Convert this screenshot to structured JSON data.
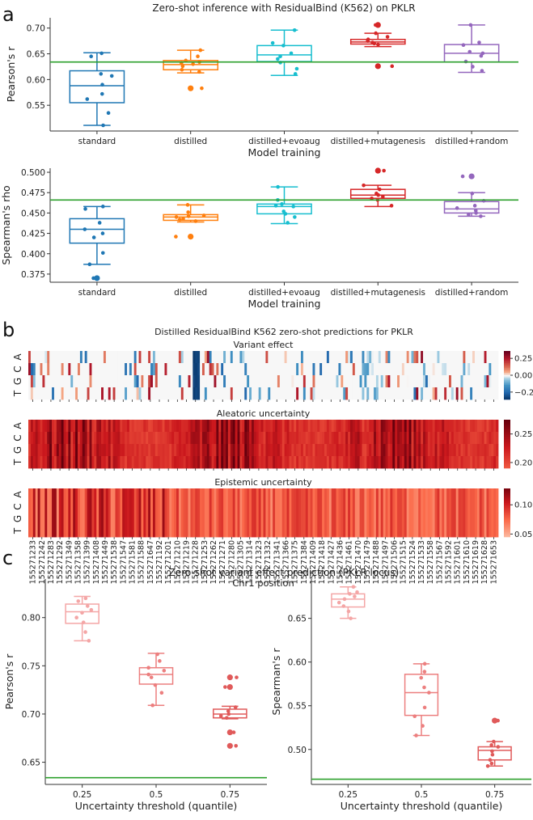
{
  "panels": {
    "a": {
      "letter": "a",
      "title": "Zero-shot inference with ResidualBind (K562) on PKLR",
      "reference_color": "#2ca02c",
      "colors": [
        "#1f77b4",
        "#ff7f0e",
        "#17becf",
        "#d62728",
        "#9467bd"
      ]
    },
    "b": {
      "letter": "b",
      "title": "Distilled ResidualBind K562 zero-shot predictions for PKLR",
      "xlabel": "Chr1 position",
      "row_labels": [
        "A",
        "C",
        "G",
        "T"
      ]
    },
    "c": {
      "letter": "c",
      "title": "Zero-shot variant effect prediction (PKLR locus)",
      "reference_color": "#2ca02c"
    }
  },
  "chart_data": [
    {
      "id": "a_pearson",
      "type": "box",
      "title": "Zero-shot inference with ResidualBind (K562) on PKLR",
      "xlabel": "Model training",
      "ylabel": "Pearson's r",
      "categories": [
        "standard",
        "distilled",
        "distilled+evoaug",
        "distilled+mutagenesis",
        "distilled+random"
      ],
      "ylim": [
        0.5,
        0.72
      ],
      "yticks": [
        0.55,
        0.6,
        0.65,
        0.7
      ],
      "ytick_labels": [
        "0.55",
        "0.60",
        "0.65",
        "0.70"
      ],
      "reference_line": 0.634,
      "boxes": [
        {
          "min": 0.511,
          "q1": 0.555,
          "median": 0.588,
          "q3": 0.617,
          "max": 0.652,
          "outliers": []
        },
        {
          "min": 0.613,
          "q1": 0.619,
          "median": 0.629,
          "q3": 0.637,
          "max": 0.657,
          "outliers": [
            0.583
          ]
        },
        {
          "min": 0.608,
          "q1": 0.635,
          "median": 0.648,
          "q3": 0.666,
          "max": 0.696,
          "outliers": []
        },
        {
          "min": 0.664,
          "q1": 0.669,
          "median": 0.673,
          "q3": 0.678,
          "max": 0.69,
          "outliers": [
            0.706,
            0.626
          ]
        },
        {
          "min": 0.614,
          "q1": 0.634,
          "median": 0.651,
          "q3": 0.668,
          "max": 0.706,
          "outliers": []
        }
      ],
      "points": [
        [
          0.651,
          0.645,
          0.611,
          0.607,
          0.59,
          0.572,
          0.562,
          0.535,
          0.511
        ],
        [
          0.657,
          0.645,
          0.637,
          0.634,
          0.632,
          0.63,
          0.626,
          0.619,
          0.615,
          0.583
        ],
        [
          0.696,
          0.671,
          0.666,
          0.651,
          0.645,
          0.64,
          0.633,
          0.621,
          0.611
        ],
        [
          0.706,
          0.69,
          0.683,
          0.678,
          0.675,
          0.672,
          0.67,
          0.668,
          0.626
        ],
        [
          0.706,
          0.672,
          0.667,
          0.654,
          0.651,
          0.646,
          0.635,
          0.625,
          0.617
        ]
      ]
    },
    {
      "id": "a_spearman",
      "type": "box",
      "xlabel": "Model training",
      "ylabel": "Spearman's rho",
      "categories": [
        "standard",
        "distilled",
        "distilled+evoaug",
        "distilled+mutagenesis",
        "distilled+random"
      ],
      "ylim": [
        0.365,
        0.505
      ],
      "yticks": [
        0.375,
        0.4,
        0.425,
        0.45,
        0.475,
        0.5
      ],
      "ytick_labels": [
        "0.375",
        "0.400",
        "0.425",
        "0.450",
        "0.475",
        "0.500"
      ],
      "reference_line": 0.466,
      "boxes": [
        {
          "min": 0.387,
          "q1": 0.413,
          "median": 0.43,
          "q3": 0.443,
          "max": 0.458,
          "outliers": [
            0.37
          ]
        },
        {
          "min": 0.439,
          "q1": 0.441,
          "median": 0.445,
          "q3": 0.448,
          "max": 0.46,
          "outliers": [
            0.421
          ]
        },
        {
          "min": 0.437,
          "q1": 0.449,
          "median": 0.458,
          "q3": 0.461,
          "max": 0.482,
          "outliers": []
        },
        {
          "min": 0.458,
          "q1": 0.468,
          "median": 0.472,
          "q3": 0.479,
          "max": 0.484,
          "outliers": [
            0.502
          ]
        },
        {
          "min": 0.446,
          "q1": 0.45,
          "median": 0.455,
          "q3": 0.464,
          "max": 0.475,
          "outliers": [
            0.495
          ]
        }
      ],
      "points": [
        [
          0.458,
          0.455,
          0.438,
          0.43,
          0.425,
          0.42,
          0.401,
          0.387,
          0.37
        ],
        [
          0.46,
          0.451,
          0.447,
          0.446,
          0.445,
          0.443,
          0.442,
          0.44,
          0.421
        ],
        [
          0.482,
          0.466,
          0.461,
          0.459,
          0.458,
          0.452,
          0.449,
          0.445,
          0.438
        ],
        [
          0.502,
          0.484,
          0.479,
          0.474,
          0.472,
          0.47,
          0.468,
          0.466,
          0.459
        ],
        [
          0.495,
          0.474,
          0.465,
          0.459,
          0.456,
          0.453,
          0.45,
          0.448,
          0.446
        ]
      ]
    },
    {
      "id": "b_heatmaps",
      "type": "heatmap",
      "title": "Distilled ResidualBind K562 zero-shot predictions for PKLR",
      "xlabel": "Chr1 position",
      "rows": [
        "A",
        "C",
        "G",
        "T"
      ],
      "x_tick_labels": [
        "155271233",
        "155271242",
        "155271283",
        "155271292",
        "155271349",
        "155271358",
        "155271399",
        "155271408",
        "155271449",
        "155271538",
        "155271547",
        "155271581",
        "155271588",
        "155271647",
        "155271192",
        "155271201",
        "155271210",
        "155271219",
        "155271228",
        "155271253",
        "155271262",
        "155271271",
        "155271280",
        "155271305",
        "155271314",
        "155271323",
        "155271332",
        "155271341",
        "155271366",
        "155271375",
        "155271384",
        "155271409",
        "155271418",
        "155271427",
        "155271436",
        "155271461",
        "155271470",
        "155271479",
        "155271488",
        "155271497",
        "155271506",
        "155271515",
        "155271524",
        "155271533",
        "155271558",
        "155271567",
        "155271592",
        "155271601",
        "155271610",
        "155271619",
        "155271628",
        "155271653"
      ],
      "maps": [
        {
          "title": "Variant effect",
          "colormap": "diverging",
          "colorbar_ticks": [
            0.25,
            0.0,
            -0.25
          ],
          "colorbar_tick_labels": [
            "0.25",
            "0.00",
            "−0.25"
          ],
          "range": [
            -0.36,
            0.36
          ]
        },
        {
          "title": "Aleatoric uncertainty",
          "colormap": "reds",
          "colorbar_ticks": [
            0.25,
            0.2
          ],
          "colorbar_tick_labels": [
            "0.25",
            "0.20"
          ],
          "range": [
            0.19,
            0.275
          ]
        },
        {
          "title": "Epistemic uncertainty",
          "colormap": "reds",
          "colorbar_ticks": [
            0.1,
            0.05
          ],
          "colorbar_tick_labels": [
            "0.10",
            "0.05"
          ],
          "range": [
            0.045,
            0.128
          ]
        }
      ]
    },
    {
      "id": "c_pearson",
      "type": "box",
      "xlabel": "Uncertainty threshold (quantile)",
      "ylabel": "Pearson's r",
      "categories": [
        "0.25",
        "0.5",
        "0.75"
      ],
      "ylim": [
        0.627,
        0.84
      ],
      "yticks": [
        0.65,
        0.7,
        0.75,
        0.8
      ],
      "ytick_labels": [
        "0.65",
        "0.70",
        "0.75",
        "0.80"
      ],
      "reference_line": 0.634,
      "boxes": [
        {
          "min": 0.776,
          "q1": 0.794,
          "median": 0.806,
          "q3": 0.814,
          "max": 0.822,
          "outliers": []
        },
        {
          "min": 0.709,
          "q1": 0.731,
          "median": 0.741,
          "q3": 0.748,
          "max": 0.763,
          "outliers": []
        },
        {
          "min": 0.695,
          "q1": 0.696,
          "median": 0.7,
          "q3": 0.705,
          "max": 0.708,
          "outliers": [
            0.738,
            0.728,
            0.681,
            0.667
          ]
        }
      ],
      "points": [
        [
          0.82,
          0.817,
          0.812,
          0.808,
          0.805,
          0.8,
          0.795,
          0.785,
          0.776
        ],
        [
          0.762,
          0.755,
          0.748,
          0.745,
          0.741,
          0.738,
          0.73,
          0.722,
          0.709
        ],
        [
          0.738,
          0.728,
          0.707,
          0.703,
          0.7,
          0.698,
          0.696,
          0.681,
          0.667
        ]
      ]
    },
    {
      "id": "c_spearman",
      "type": "box",
      "xlabel": "Uncertainty threshold (quantile)",
      "ylabel": "Spearman's r",
      "categories": [
        "0.25",
        "0.5",
        "0.75"
      ],
      "ylim": [
        0.46,
        0.695
      ],
      "yticks": [
        0.5,
        0.55,
        0.6,
        0.65
      ],
      "ytick_labels": [
        "0.50",
        "0.55",
        "0.60",
        "0.65"
      ],
      "reference_line": 0.466,
      "boxes": [
        {
          "min": 0.65,
          "q1": 0.663,
          "median": 0.672,
          "q3": 0.678,
          "max": 0.686,
          "outliers": []
        },
        {
          "min": 0.516,
          "q1": 0.539,
          "median": 0.565,
          "q3": 0.586,
          "max": 0.598,
          "outliers": []
        },
        {
          "min": 0.481,
          "q1": 0.488,
          "median": 0.499,
          "q3": 0.503,
          "max": 0.509,
          "outliers": [
            0.533
          ]
        }
      ],
      "points": [
        [
          0.686,
          0.68,
          0.678,
          0.675,
          0.672,
          0.668,
          0.664,
          0.658,
          0.65
        ],
        [
          0.598,
          0.589,
          0.582,
          0.571,
          0.565,
          0.548,
          0.538,
          0.527,
          0.516
        ],
        [
          0.533,
          0.509,
          0.505,
          0.503,
          0.498,
          0.494,
          0.488,
          0.484,
          0.481
        ]
      ]
    }
  ]
}
